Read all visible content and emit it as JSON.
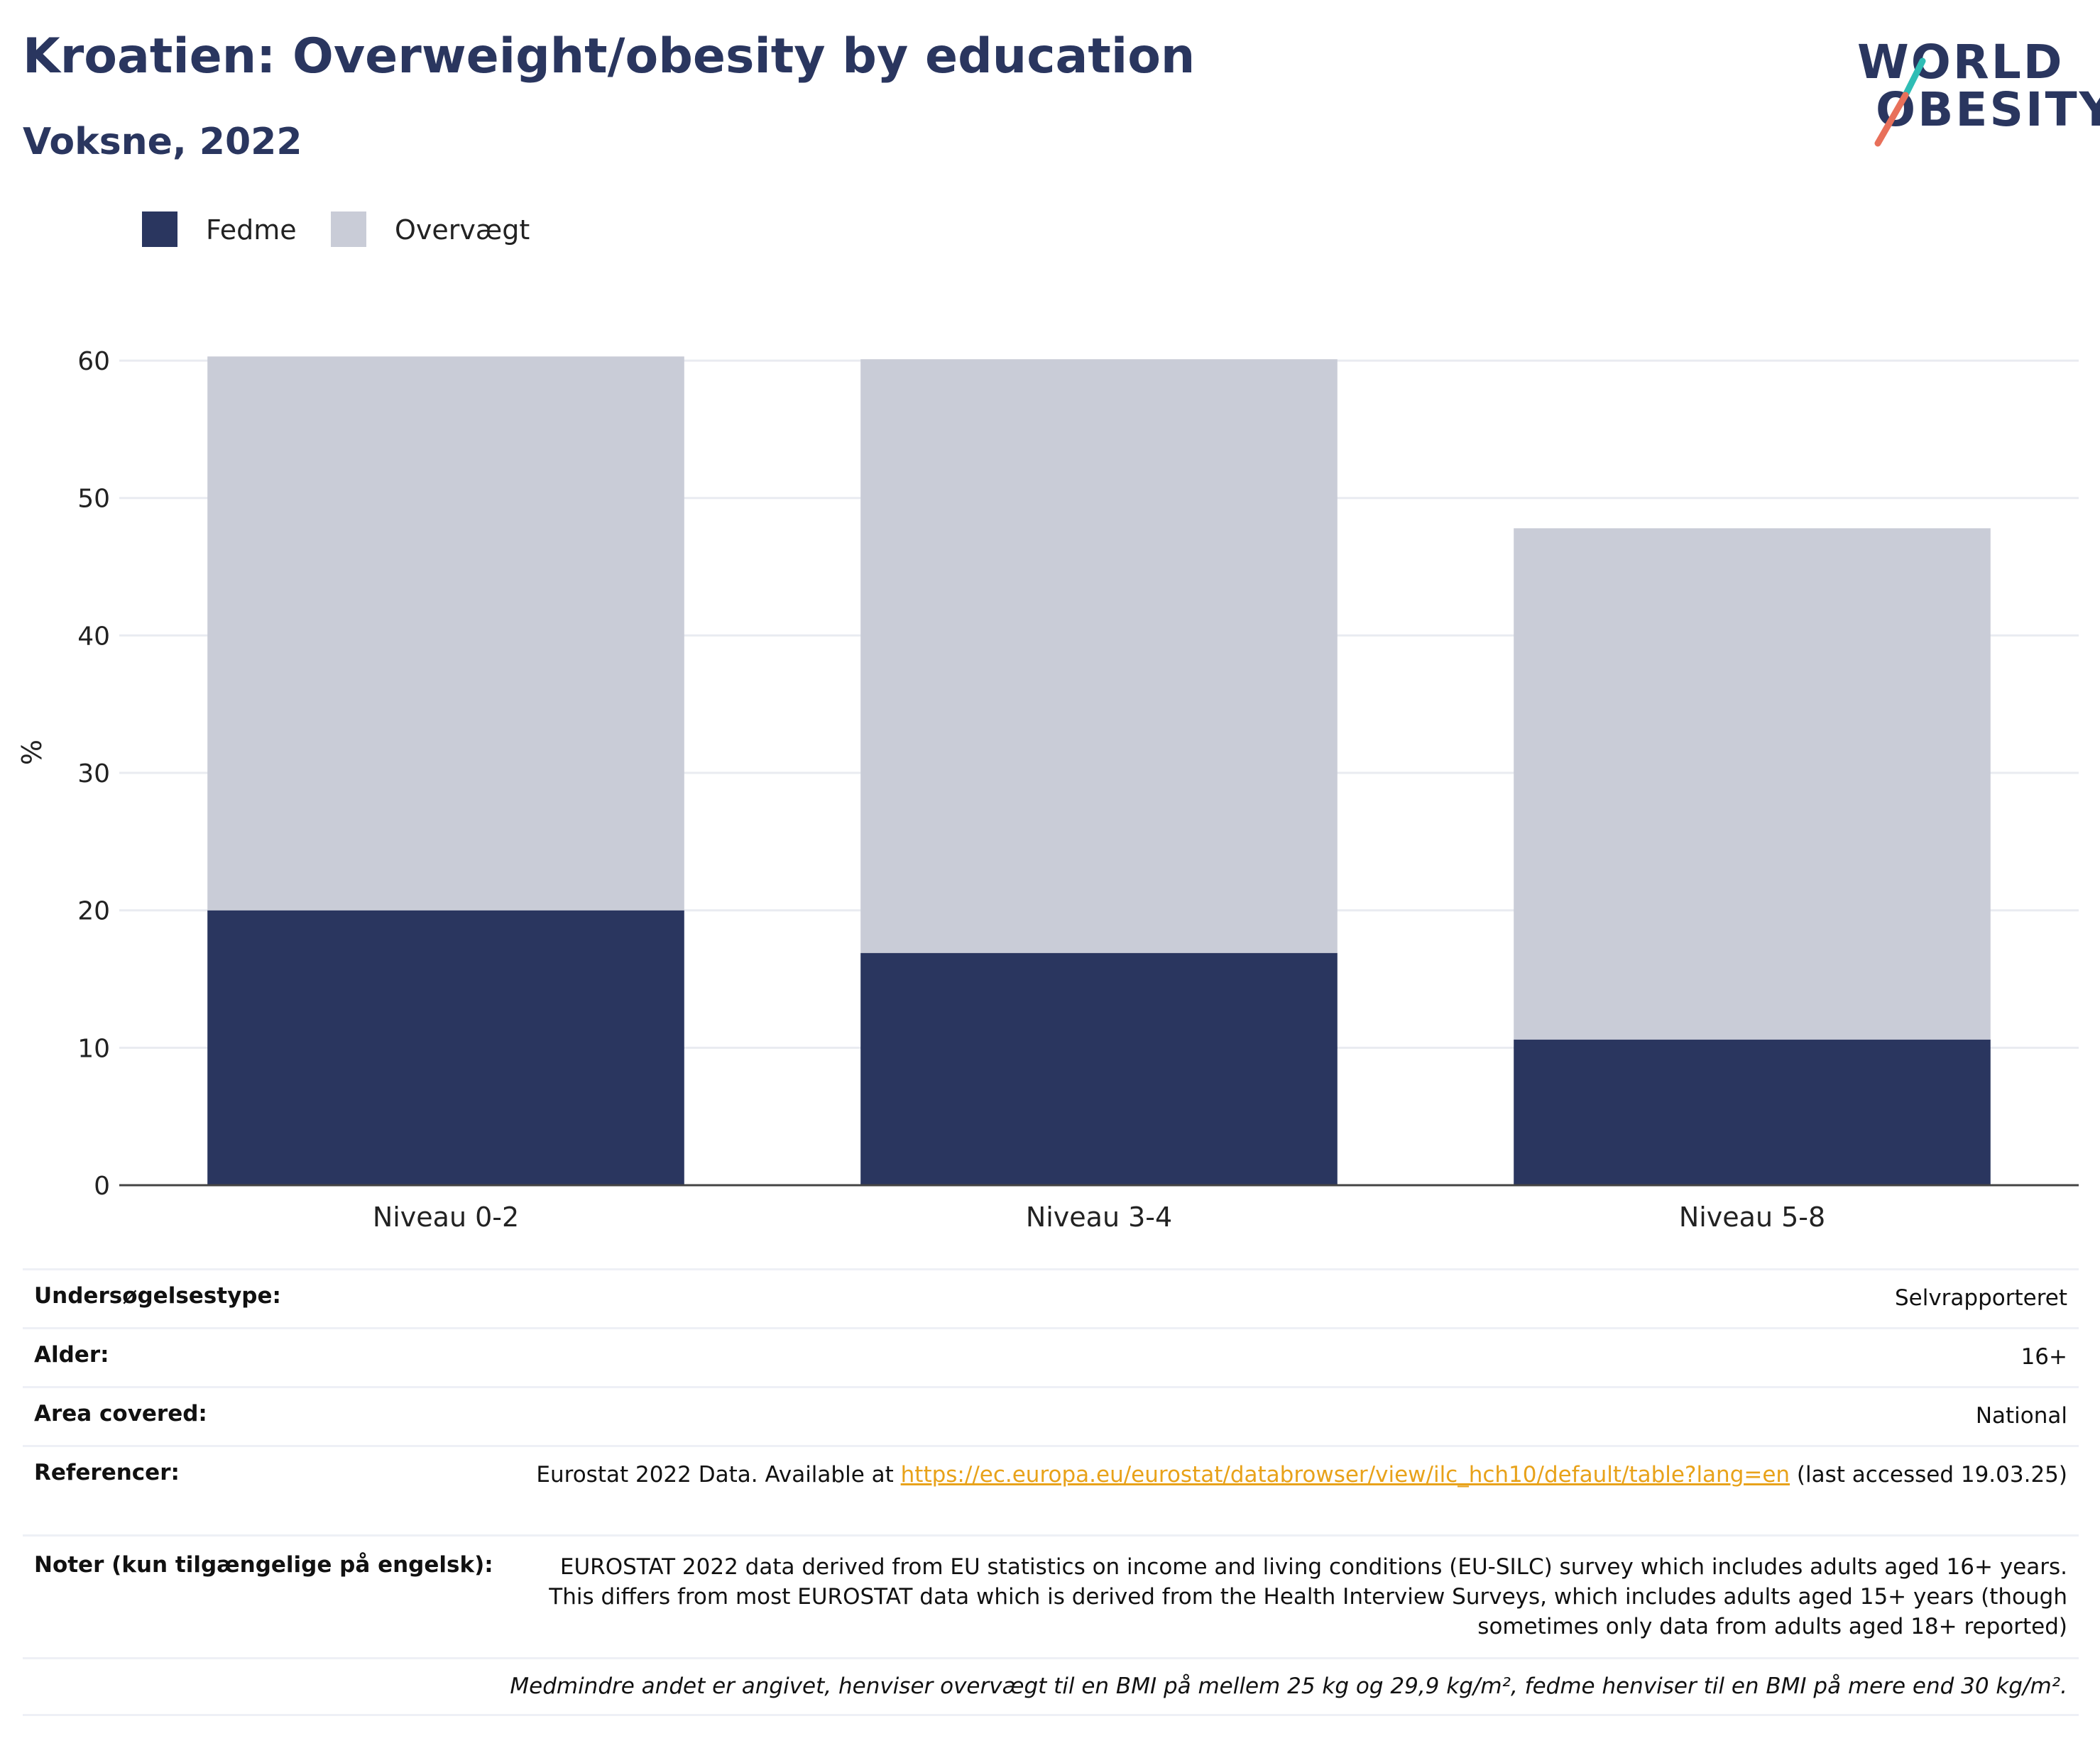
{
  "header": {
    "title": "Kroatien: Overweight/obesity by education",
    "subtitle": "Voksne, 2022"
  },
  "logo": {
    "line1": "WORLD",
    "line2": "OBESITY",
    "colors": {
      "teal": "#2fbdb5",
      "coral": "#e8705a"
    }
  },
  "legend": [
    {
      "label": "Fedme",
      "color": "#2a365f"
    },
    {
      "label": "Overvægt",
      "color": "#c9ccd7"
    }
  ],
  "chart_data": {
    "type": "bar",
    "stacked": true,
    "categories": [
      "Niveau 0-2",
      "Niveau 3-4",
      "Niveau 5-8"
    ],
    "series": [
      {
        "name": "Fedme",
        "values": [
          20.0,
          16.9,
          10.6
        ],
        "color": "#2a365f"
      },
      {
        "name": "Overvægt",
        "values": [
          40.3,
          43.2,
          37.2
        ],
        "color": "#c9ccd7"
      }
    ],
    "totals": [
      60.3,
      60.1,
      47.8
    ],
    "ylabel": "%",
    "ylim": [
      0,
      63
    ],
    "yticks": [
      "0",
      "10",
      "20",
      "30",
      "40",
      "50",
      "60"
    ],
    "grid": true,
    "legend_position": "top-left"
  },
  "info": [
    {
      "key": "Undersøgelsestype:",
      "value": "Selvrapporteret"
    },
    {
      "key": "Alder:",
      "value": "16+"
    },
    {
      "key": "Area covered:",
      "value": "National"
    },
    {
      "key": "Referencer:",
      "value_prefix": "Eurostat 2022 Data. Available at ",
      "link": "https://ec.europa.eu/eurostat/databrowser/view/ilc_hch10/default/table?lang=en",
      "value_suffix": " (last accessed 19.03.25)"
    },
    {
      "key": "Noter (kun tilgængelige på engelsk):",
      "value": "EUROSTAT 2022 data derived from EU statistics on income and living conditions (EU-SILC) survey which includes adults aged 16+ years. This differs from most EUROSTAT data which is derived from the Health Interview Surveys, which includes adults aged 15+ years (though sometimes only data from adults aged 18+ reported)"
    }
  ],
  "footnote": "Medmindre andet er angivet, henviser overvægt til en BMI på mellem 25 kg og 29,9 kg/m², fedme henviser til en BMI på mere end 30 kg/m²."
}
